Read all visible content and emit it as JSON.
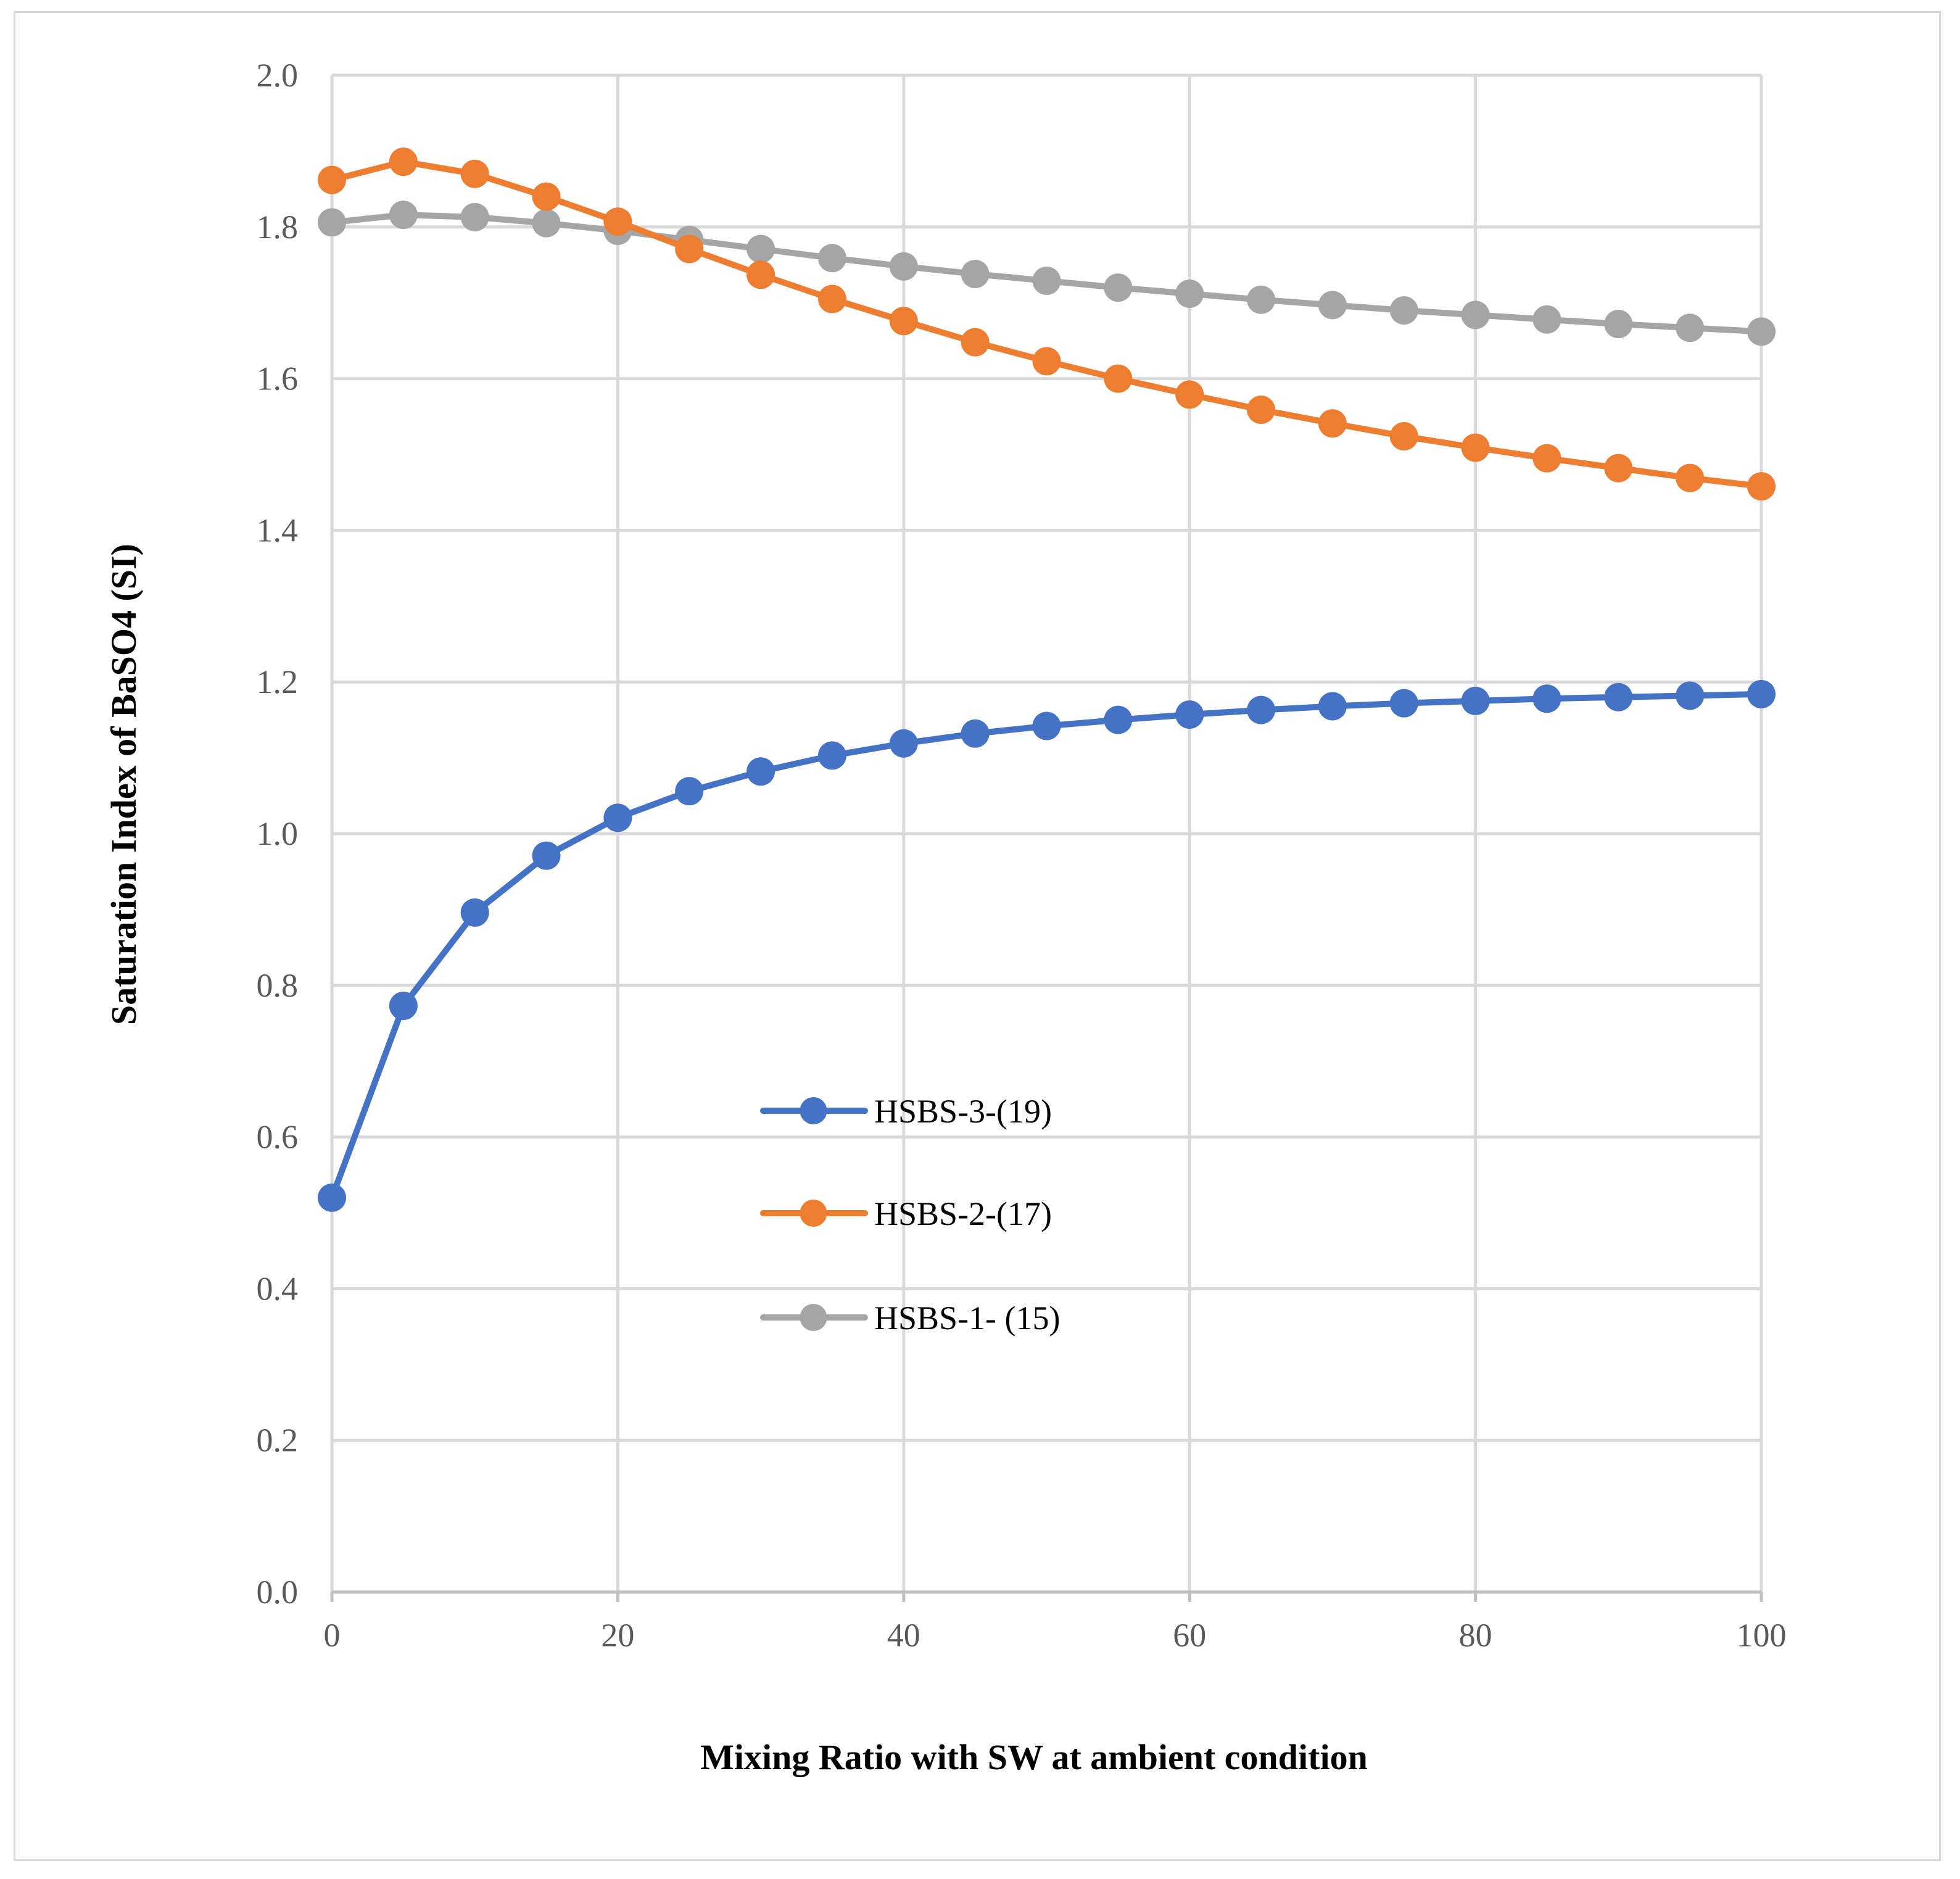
{
  "chart_data": {
    "type": "line",
    "title": "",
    "xlabel": "Mixing Ratio with SW at ambient condition",
    "ylabel": "Saturation Index of BaSO4  (SI)",
    "x": [
      0,
      5,
      10,
      15,
      20,
      25,
      30,
      35,
      40,
      45,
      50,
      55,
      60,
      65,
      70,
      75,
      80,
      85,
      90,
      95,
      100
    ],
    "xlim": [
      0,
      100
    ],
    "ylim": [
      0.0,
      2.0
    ],
    "xticks": [
      0,
      20,
      40,
      60,
      80,
      100
    ],
    "xtick_labels": [
      "0",
      "20",
      "40",
      "60",
      "80",
      "100"
    ],
    "yticks": [
      0.0,
      0.2,
      0.4,
      0.6,
      0.8,
      1.0,
      1.2,
      1.4,
      1.6,
      1.8,
      2.0
    ],
    "ytick_labels": [
      "0.0",
      "0.2",
      "0.4",
      "0.6",
      "0.8",
      "1.0",
      "1.2",
      "1.4",
      "1.6",
      "1.8",
      "2.0"
    ],
    "grid": true,
    "legend_position": "center-left",
    "series": [
      {
        "name": "HSBS-3-(19)",
        "color": "#4472c4",
        "values": [
          0.52,
          0.773,
          0.896,
          0.971,
          1.021,
          1.056,
          1.082,
          1.103,
          1.119,
          1.132,
          1.142,
          1.15,
          1.157,
          1.163,
          1.168,
          1.172,
          1.175,
          1.178,
          1.18,
          1.182,
          1.184
        ]
      },
      {
        "name": "HSBS-2-(17)",
        "color": "#ed7d31",
        "values": [
          1.862,
          1.886,
          1.87,
          1.84,
          1.807,
          1.771,
          1.737,
          1.705,
          1.676,
          1.648,
          1.623,
          1.6,
          1.579,
          1.559,
          1.541,
          1.524,
          1.509,
          1.495,
          1.482,
          1.469,
          1.458
        ]
      },
      {
        "name": "HSBS-1- (15)",
        "color": "#a5a5a5",
        "values": [
          1.806,
          1.816,
          1.813,
          1.805,
          1.795,
          1.783,
          1.771,
          1.759,
          1.748,
          1.738,
          1.729,
          1.72,
          1.712,
          1.704,
          1.697,
          1.69,
          1.684,
          1.678,
          1.672,
          1.667,
          1.662
        ]
      }
    ]
  }
}
